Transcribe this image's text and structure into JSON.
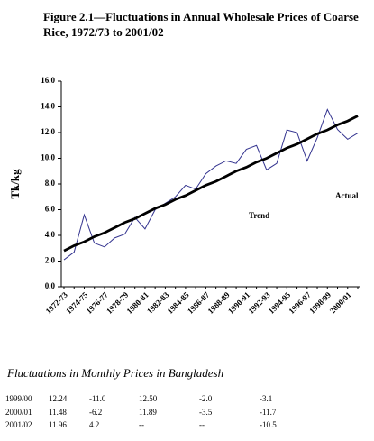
{
  "chart_data": {
    "type": "line",
    "title": "Figure 2.1—Fluctuations in Annual Wholesale Prices of Coarse Rice, 1972/73 to 2001/02",
    "y_label": "Tk/kg",
    "categories": [
      "1972-73",
      null,
      "1974-75",
      null,
      "1976-77",
      null,
      "1978-79",
      null,
      "1980-81",
      null,
      "1982-83",
      null,
      "1984-85",
      null,
      "1986-87",
      null,
      "1988-89",
      null,
      "1990-91",
      null,
      "1992-93",
      null,
      "1994-95",
      null,
      "1996-97",
      null,
      "1998/99",
      null,
      "2000/01",
      null
    ],
    "series": [
      {
        "name": "Actual",
        "color": "#33338f",
        "values": [
          2.1,
          2.7,
          5.6,
          3.4,
          3.1,
          3.8,
          4.1,
          5.4,
          4.5,
          6.0,
          6.5,
          7.0,
          7.9,
          7.6,
          8.8,
          9.4,
          9.8,
          9.6,
          10.7,
          11.0,
          9.1,
          9.6,
          12.2,
          12.0,
          9.8,
          11.6,
          13.8,
          12.24,
          11.48,
          11.96
        ]
      },
      {
        "name": "Trend",
        "color": "#000000",
        "values": [
          2.8,
          3.2,
          3.5,
          3.9,
          4.2,
          4.6,
          5.0,
          5.3,
          5.7,
          6.1,
          6.4,
          6.8,
          7.1,
          7.5,
          7.9,
          8.2,
          8.6,
          9.0,
          9.3,
          9.7,
          10.0,
          10.4,
          10.8,
          11.1,
          11.5,
          11.9,
          12.2,
          12.6,
          12.9,
          13.3
        ]
      }
    ],
    "ylim": [
      0,
      16
    ],
    "yticks": [
      {
        "value": 0,
        "label": "0.0"
      },
      {
        "value": 2,
        "label": "2.0"
      },
      {
        "value": 4,
        "label": "4.0"
      },
      {
        "value": 6,
        "label": "6.0"
      },
      {
        "value": 8,
        "label": "8.0"
      },
      {
        "value": 10,
        "label": "10.0"
      },
      {
        "value": 12,
        "label": "12.0"
      },
      {
        "value": 14,
        "label": "14.0"
      },
      {
        "value": 16,
        "label": "16.0"
      }
    ]
  },
  "table": {
    "title": "Fluctuations in Monthly Prices in Bangladesh",
    "rows": [
      [
        "1999/00",
        "12.24",
        "-11.0",
        "12.50",
        "-2.0",
        "-3.1"
      ],
      [
        "2000/01",
        "11.48",
        "-6.2",
        "11.89",
        "-3.5",
        "-11.7"
      ],
      [
        "2001/02",
        "11.96",
        "4.2",
        "--",
        "--",
        "-10.5"
      ]
    ]
  }
}
